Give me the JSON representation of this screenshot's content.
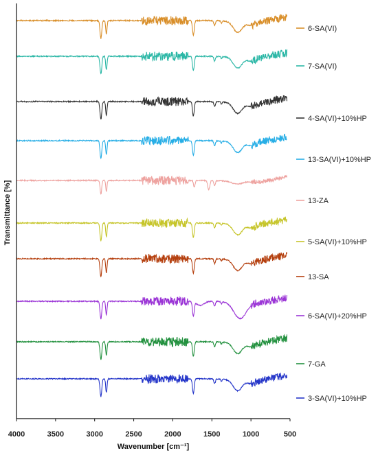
{
  "chart_data": {
    "type": "line",
    "title": "",
    "xlabel": "Wavenumber [cm⁻¹]",
    "ylabel": "Transmittance [%]",
    "xlim": [
      4000,
      500
    ],
    "x_reversed": true,
    "x_ticks": [
      4000,
      3500,
      3000,
      2500,
      2000,
      1500,
      1000,
      500
    ],
    "x_tick_labels": [
      "4000",
      "3500",
      "3000",
      "2500",
      "2000",
      "1500",
      "1000",
      "500"
    ],
    "y_axis_numbered": false,
    "grid": false,
    "legend_position": "right",
    "series": [
      {
        "name": "6-SA(VI)",
        "color": "#d98f2a",
        "profile": "sa"
      },
      {
        "name": "7-SA(VI)",
        "color": "#2bb7a6",
        "profile": "sa"
      },
      {
        "name": "4-SA(VI)+10%HP",
        "color": "#333333",
        "profile": "sa"
      },
      {
        "name": "13-SA(VI)+10%HP",
        "color": "#27aee6",
        "profile": "sa"
      },
      {
        "name": "13-ZA",
        "color": "#eea3a0",
        "profile": "za"
      },
      {
        "name": "5-SA(VI)+10%HP",
        "color": "#c6c52a",
        "profile": "sa"
      },
      {
        "name": "13-SA",
        "color": "#b5400f",
        "profile": "sa"
      },
      {
        "name": "6-SA(VI)+20%HP",
        "color": "#9b35d6",
        "profile": "broad"
      },
      {
        "name": "7-GA",
        "color": "#23913f",
        "profile": "sa"
      },
      {
        "name": "3-SA(VI)+10%HP",
        "color": "#2536c9",
        "profile": "sa"
      }
    ]
  }
}
